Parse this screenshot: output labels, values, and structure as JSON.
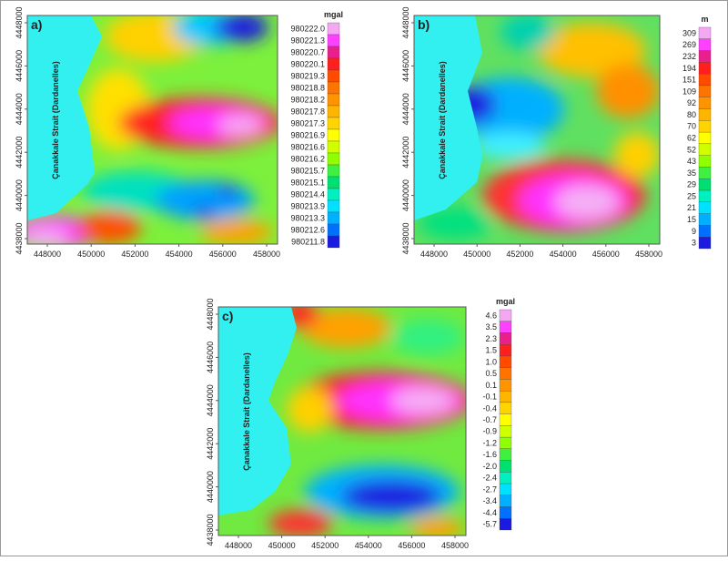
{
  "figure": {
    "panels": [
      {
        "label": "a)",
        "sea_label": "Çanakkale Strait (Dardanelles)",
        "unit": "mgal",
        "x_ticks": [
          "448000",
          "450000",
          "452000",
          "454000",
          "456000",
          "458000"
        ],
        "y_ticks": [
          "4438000",
          "4440000",
          "4442000",
          "4444000",
          "4446000",
          "4448000"
        ],
        "colorbar": [
          "980222.0",
          "980221.3",
          "980220.7",
          "980220.1",
          "980219.3",
          "980218.8",
          "980218.2",
          "980217.8",
          "980217.3",
          "980216.9",
          "980216.6",
          "980216.2",
          "980215.7",
          "980215.1",
          "980214.4",
          "980213.9",
          "980213.3",
          "980212.6",
          "980211.8"
        ]
      },
      {
        "label": "b)",
        "sea_label": "Çanakkale Strait (Dardanelles)",
        "unit": "m",
        "x_ticks": [
          "448000",
          "450000",
          "452000",
          "454000",
          "456000",
          "458000"
        ],
        "y_ticks": [
          "4438000",
          "4440000",
          "4442000",
          "4444000",
          "4446000",
          "4448000"
        ],
        "colorbar": [
          "309",
          "269",
          "232",
          "194",
          "151",
          "109",
          "92",
          "80",
          "70",
          "62",
          "52",
          "43",
          "35",
          "29",
          "25",
          "21",
          "15",
          "9",
          "3"
        ]
      },
      {
        "label": "c)",
        "sea_label": "Çanakkale Strait (Dardanelles)",
        "unit": "mgal",
        "x_ticks": [
          "448000",
          "450000",
          "452000",
          "454000",
          "456000",
          "458000"
        ],
        "y_ticks": [
          "4438000",
          "4440000",
          "4442000",
          "4444000",
          "4446000",
          "4448000"
        ],
        "colorbar": [
          "4.6",
          "3.5",
          "2.3",
          "1.5",
          "1.0",
          "0.5",
          "0.1",
          "-0.1",
          "-0.4",
          "-0.7",
          "-0.9",
          "-1.2",
          "-1.6",
          "-2.0",
          "-2.4",
          "-2.7",
          "-3.4",
          "-4.4",
          "-5.7"
        ]
      }
    ]
  }
}
